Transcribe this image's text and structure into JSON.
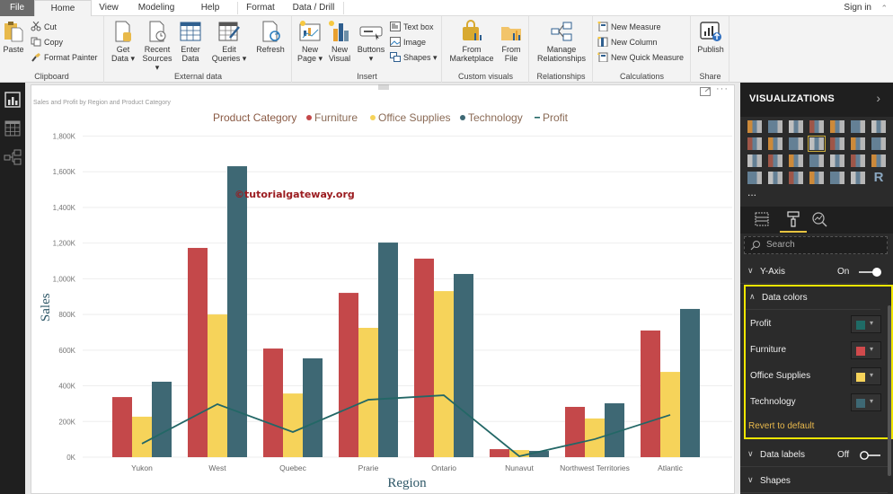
{
  "ribbon": {
    "tabs": [
      {
        "label": "File"
      },
      {
        "label": "Home",
        "active": true
      },
      {
        "label": "View"
      },
      {
        "label": "Modeling"
      },
      {
        "label": "Help"
      },
      {
        "label": "Format"
      },
      {
        "label": "Data / Drill"
      }
    ],
    "sign_in": "Sign in",
    "collapse_icon": "chevron-up-icon",
    "groups": {
      "clipboard": {
        "label": "Clipboard",
        "paste": "Paste",
        "cut": "Cut",
        "copy": "Copy",
        "format_painter": "Format Painter"
      },
      "external_data": {
        "label": "External data",
        "get_data_1": "Get",
        "get_data_2": "Data ▾",
        "recent_sources_1": "Recent",
        "recent_sources_2": "Sources ▾",
        "enter_data_1": "Enter",
        "enter_data_2": "Data",
        "edit_queries_1": "Edit",
        "edit_queries_2": "Queries ▾",
        "refresh": "Refresh"
      },
      "insert": {
        "label": "Insert",
        "new_page_1": "New",
        "new_page_2": "Page ▾",
        "new_visual_1": "New",
        "new_visual_2": "Visual",
        "buttons_1": "Buttons",
        "buttons_2": "▾",
        "text_box": "Text box",
        "image": "Image",
        "shapes": "Shapes ▾"
      },
      "custom_visuals": {
        "label": "Custom visuals",
        "from_marketplace_1": "From",
        "from_marketplace_2": "Marketplace",
        "from_file_1": "From",
        "from_file_2": "File"
      },
      "relationships": {
        "label": "Relationships",
        "manage_1": "Manage",
        "manage_2": "Relationships"
      },
      "calculations": {
        "label": "Calculations",
        "new_measure": "New Measure",
        "new_column": "New Column",
        "new_quick_measure": "New Quick Measure"
      },
      "share": {
        "label": "Share",
        "publish": "Publish"
      }
    }
  },
  "left_nav": {
    "items": [
      {
        "name": "report-view",
        "icon": "bar-chart-icon",
        "active": true
      },
      {
        "name": "data-view",
        "icon": "table-icon"
      },
      {
        "name": "model-view",
        "icon": "relationships-icon"
      }
    ]
  },
  "visual": {
    "title": "Sales and Profit by Region and Product Category",
    "watermark": "©tutorialgateway.org",
    "header_icons": [
      "focus-mode-icon",
      "more-options-icon"
    ]
  },
  "chart_data": {
    "type": "bar",
    "subtype": "clustered column and line",
    "title": "Sales and Profit by Region and Product Category",
    "legend_title": "Product Category",
    "legend_position": "top-center",
    "xlabel": "Region",
    "ylabel": "Sales",
    "ylim": [
      0,
      1800000
    ],
    "yticks": [
      "0K",
      "200K",
      "400K",
      "600K",
      "800K",
      "1,000K",
      "1,200K",
      "1,400K",
      "1,600K",
      "1,800K"
    ],
    "grid": true,
    "categories": [
      "Yukon",
      "West",
      "Quebec",
      "Prarie",
      "Ontario",
      "Nunavut",
      "Northwest Territories",
      "Atlantic"
    ],
    "series": [
      {
        "name": "Furniture",
        "type": "bar",
        "color": "#C4484A",
        "values": [
          337000,
          1173000,
          609000,
          921000,
          1113000,
          45000,
          282000,
          710000
        ]
      },
      {
        "name": "Office Supplies",
        "type": "bar",
        "color": "#F6D35A",
        "values": [
          227000,
          800000,
          357000,
          725000,
          931000,
          40000,
          217000,
          478000
        ]
      },
      {
        "name": "Technology",
        "type": "bar",
        "color": "#3E6874",
        "values": [
          423000,
          1631000,
          554000,
          1203000,
          1027000,
          35000,
          302000,
          831000
        ]
      },
      {
        "name": "Profit",
        "type": "line",
        "color": "#236766",
        "values": [
          76000,
          297000,
          141000,
          322000,
          347000,
          5000,
          101000,
          237000
        ]
      }
    ]
  },
  "viz_pane": {
    "title": "VISUALIZATIONS",
    "expand_icon": "chevron-right-icon",
    "more": "...",
    "tabs": [
      "fields-icon",
      "format-paint-roller-icon",
      "analytics-icon"
    ],
    "search_placeholder": "Search",
    "sections": {
      "y_axis": {
        "label": "Y-Axis",
        "state": "On"
      },
      "data_colors": {
        "label": "Data colors",
        "rows": [
          {
            "label": "Profit",
            "color": "#1F6B66"
          },
          {
            "label": "Furniture",
            "color": "#D04A4C"
          },
          {
            "label": "Office Supplies",
            "color": "#F6D35A"
          },
          {
            "label": "Technology",
            "color": "#3E6874"
          }
        ],
        "revert": "Revert to default"
      },
      "data_labels": {
        "label": "Data labels",
        "state": "Off"
      },
      "shapes": {
        "label": "Shapes"
      }
    }
  }
}
